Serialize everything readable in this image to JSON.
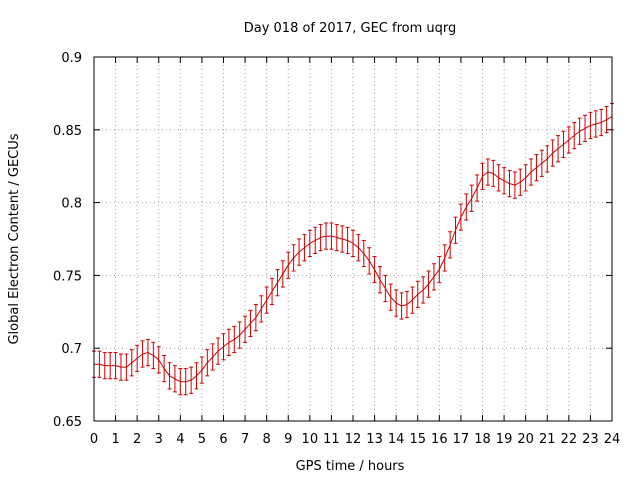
{
  "chart_data": {
    "type": "line",
    "title": "Day 018 of 2017, GEC from uqrg",
    "xlabel": "GPS time / hours",
    "ylabel": "Global Electron Content / GECUs",
    "xlim": [
      0,
      24
    ],
    "ylim": [
      0.65,
      0.9
    ],
    "xticks": [
      0,
      1,
      2,
      3,
      4,
      5,
      6,
      7,
      8,
      9,
      10,
      11,
      12,
      13,
      14,
      15,
      16,
      17,
      18,
      19,
      20,
      21,
      22,
      23,
      24
    ],
    "yticks": [
      0.65,
      0.7,
      0.75,
      0.8,
      0.85,
      0.9
    ],
    "ytick_labels": [
      "0.65",
      "0.7",
      "0.75",
      "0.8",
      "0.85",
      "0.9"
    ],
    "grid": true,
    "line_color": "#cc0000",
    "error_bar": 0.009,
    "series": [
      {
        "x": [
          0,
          0.25,
          0.5,
          0.75,
          1,
          1.25,
          1.5,
          1.75,
          2,
          2.25,
          2.5,
          2.75,
          3,
          3.25,
          3.5,
          3.75,
          4,
          4.25,
          4.5,
          4.75,
          5,
          5.25,
          5.5,
          5.75,
          6,
          6.25,
          6.5,
          6.75,
          7,
          7.25,
          7.5,
          7.75,
          8,
          8.25,
          8.5,
          8.75,
          9,
          9.25,
          9.5,
          9.75,
          10,
          10.25,
          10.5,
          10.75,
          11,
          11.25,
          11.5,
          11.75,
          12,
          12.25,
          12.5,
          12.75,
          13,
          13.25,
          13.5,
          13.75,
          14,
          14.25,
          14.5,
          14.75,
          15,
          15.25,
          15.5,
          15.75,
          16,
          16.25,
          16.5,
          16.75,
          17,
          17.25,
          17.5,
          17.75,
          18,
          18.25,
          18.5,
          18.75,
          19,
          19.25,
          19.5,
          19.75,
          20,
          20.25,
          20.5,
          20.75,
          21,
          21.25,
          21.5,
          21.75,
          22,
          22.25,
          22.5,
          22.75,
          23,
          23.25,
          23.5,
          23.75,
          24
        ],
        "y": [
          0.689,
          0.689,
          0.688,
          0.688,
          0.688,
          0.687,
          0.687,
          0.69,
          0.693,
          0.696,
          0.697,
          0.695,
          0.692,
          0.686,
          0.681,
          0.679,
          0.677,
          0.677,
          0.678,
          0.681,
          0.685,
          0.69,
          0.694,
          0.698,
          0.701,
          0.704,
          0.706,
          0.709,
          0.713,
          0.717,
          0.721,
          0.727,
          0.733,
          0.739,
          0.745,
          0.751,
          0.757,
          0.762,
          0.766,
          0.769,
          0.772,
          0.774,
          0.776,
          0.777,
          0.777,
          0.776,
          0.775,
          0.774,
          0.772,
          0.769,
          0.765,
          0.76,
          0.754,
          0.747,
          0.741,
          0.735,
          0.731,
          0.729,
          0.73,
          0.733,
          0.737,
          0.74,
          0.744,
          0.749,
          0.754,
          0.762,
          0.771,
          0.781,
          0.79,
          0.797,
          0.803,
          0.81,
          0.818,
          0.821,
          0.82,
          0.817,
          0.815,
          0.813,
          0.812,
          0.814,
          0.817,
          0.821,
          0.824,
          0.827,
          0.83,
          0.834,
          0.837,
          0.84,
          0.843,
          0.846,
          0.849,
          0.851,
          0.853,
          0.854,
          0.855,
          0.857,
          0.859
        ]
      }
    ]
  }
}
